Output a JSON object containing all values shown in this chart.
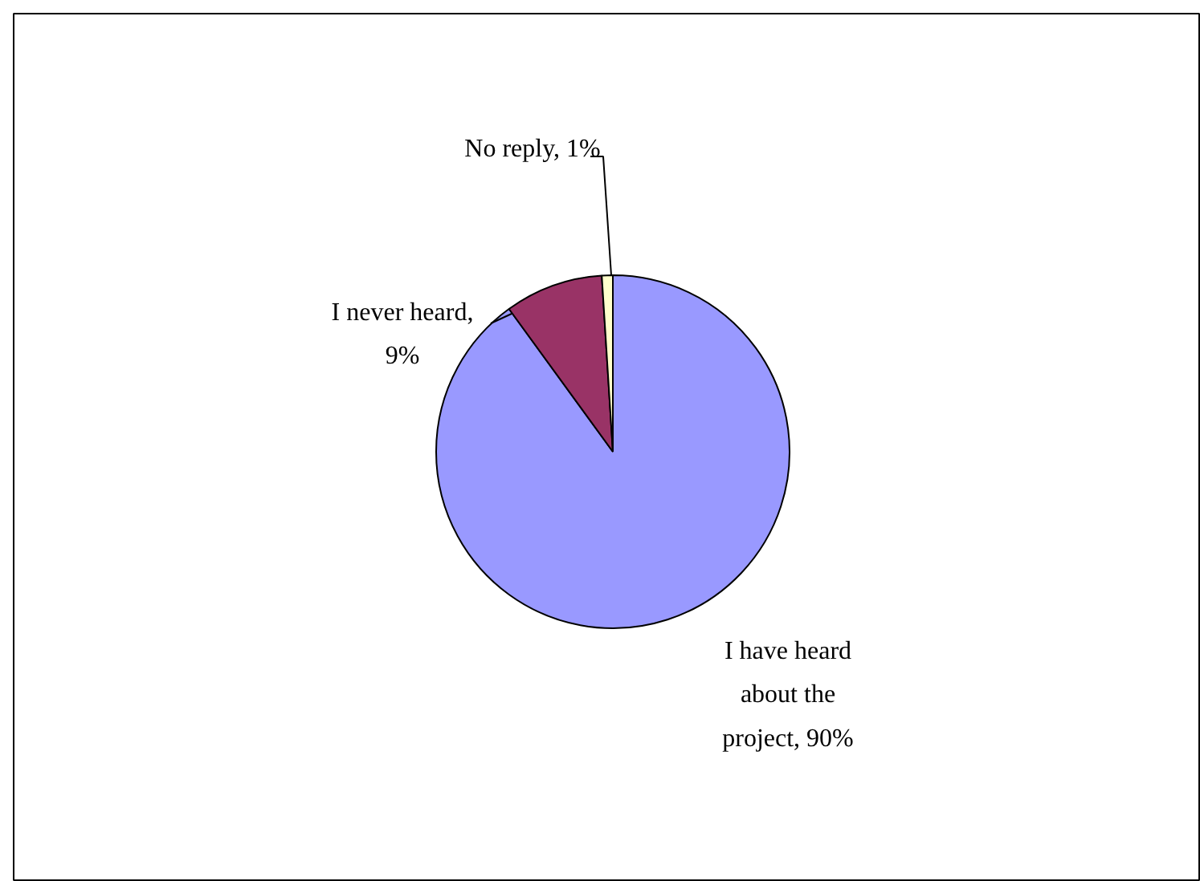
{
  "chart_data": {
    "type": "pie",
    "categories": [
      "I have heard about the project, 90%",
      "I never heard, 9%",
      "No reply, 1%"
    ],
    "values": [
      90,
      9,
      1
    ],
    "colors": [
      "#9999ff",
      "#993366",
      "#ffffcc"
    ]
  }
}
